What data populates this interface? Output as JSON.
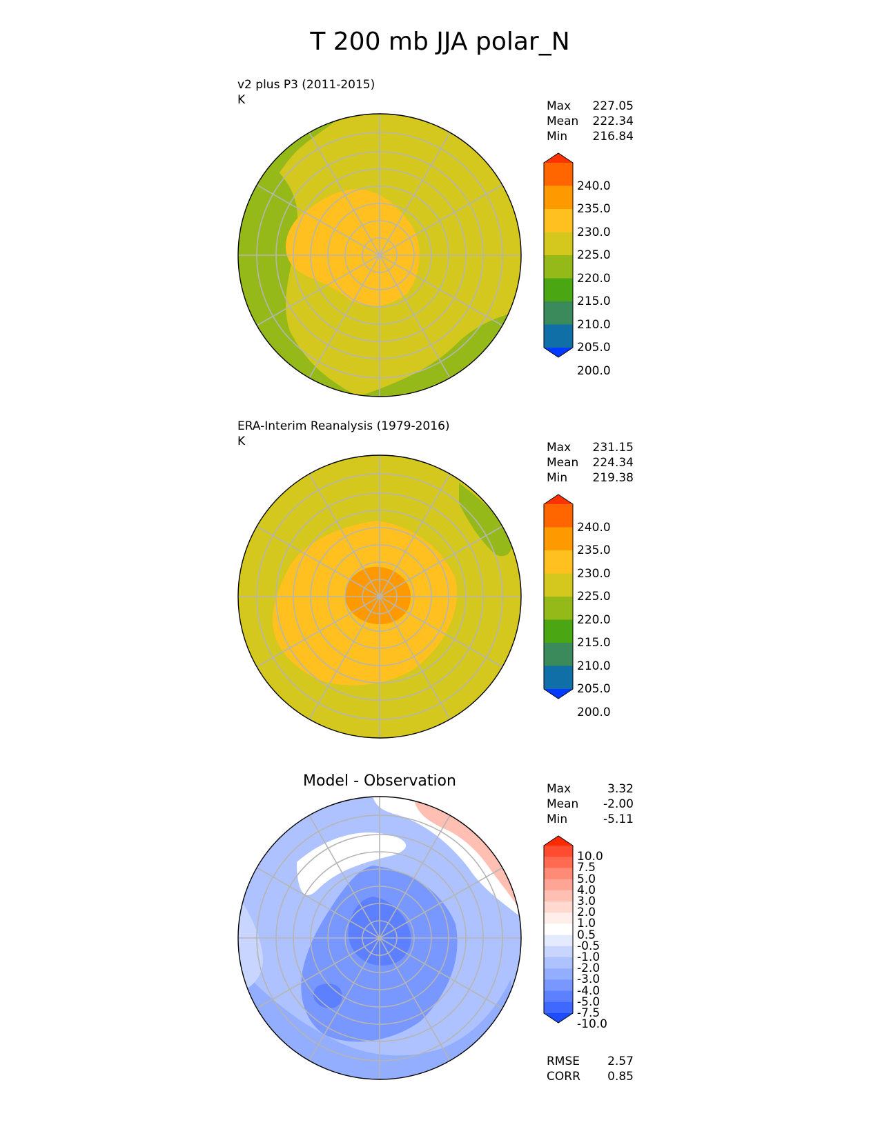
{
  "title": "T 200 mb JJA polar_N",
  "panels": [
    {
      "subtitle": "v2 plus P3 (2011-2015)",
      "units": "K",
      "stats": [
        {
          "label": "Max",
          "value": "227.05"
        },
        {
          "label": "Mean",
          "value": "222.34"
        },
        {
          "label": "Min",
          "value": "216.84"
        }
      ],
      "colorbar": {
        "labels": [
          "240.0",
          "235.0",
          "230.0",
          "225.0",
          "220.0",
          "215.0",
          "210.0",
          "205.0",
          "200.0"
        ],
        "colors": [
          "#ff3300",
          "#ff6600",
          "#ff9900",
          "#ffc020",
          "#d4c81e",
          "#96b91a",
          "#4ba614",
          "#3a8a5c",
          "#0f6fa6",
          "#0039ff"
        ]
      }
    },
    {
      "subtitle": "ERA-Interim Reanalysis (1979-2016)",
      "units": "K",
      "stats": [
        {
          "label": "Max",
          "value": "231.15"
        },
        {
          "label": "Mean",
          "value": "224.34"
        },
        {
          "label": "Min",
          "value": "219.38"
        }
      ],
      "colorbar": {
        "labels": [
          "240.0",
          "235.0",
          "230.0",
          "225.0",
          "220.0",
          "215.0",
          "210.0",
          "205.0",
          "200.0"
        ],
        "colors": [
          "#ff3300",
          "#ff6600",
          "#ff9900",
          "#ffc020",
          "#d4c81e",
          "#96b91a",
          "#4ba614",
          "#3a8a5c",
          "#0f6fa6",
          "#0039ff"
        ]
      }
    },
    {
      "title": "Model - Observation",
      "stats": [
        {
          "label": "Max",
          "value": "3.32"
        },
        {
          "label": "Mean",
          "value": "-2.00"
        },
        {
          "label": "Min",
          "value": "-5.11"
        }
      ],
      "colorbar": {
        "labels": [
          "10.0",
          "7.5",
          "5.0",
          "4.0",
          "3.0",
          "2.0",
          "1.0",
          "0.5",
          "-0.5",
          "-1.0",
          "-2.0",
          "-3.0",
          "-4.0",
          "-5.0",
          "-7.5",
          "-10.0"
        ],
        "colors": [
          "#ff2a00",
          "#ff4c30",
          "#ff6a50",
          "#ff8a75",
          "#ffa595",
          "#ffbfb2",
          "#ffd8d0",
          "#ffeeea",
          "#ffffff",
          "#e4ebff",
          "#c8d6ff",
          "#aec2ff",
          "#93adff",
          "#7897ff",
          "#5c80ff",
          "#3f68ff",
          "#1e4cff"
        ]
      },
      "metrics": [
        {
          "label": "RMSE",
          "value": "2.57"
        },
        {
          "label": "CORR",
          "value": "0.85"
        }
      ]
    }
  ]
}
